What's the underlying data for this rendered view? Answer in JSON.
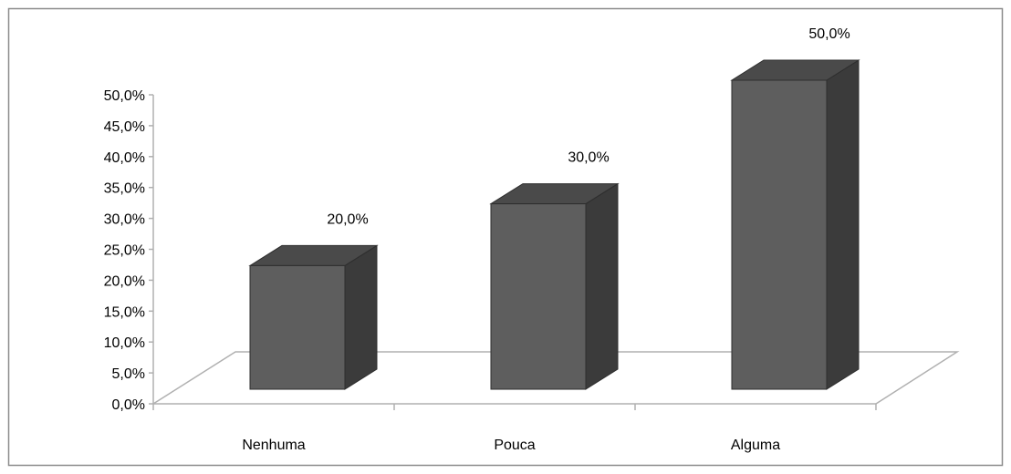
{
  "chart_data": {
    "type": "bar",
    "categories": [
      "Nenhuma",
      "Pouca",
      "Alguma"
    ],
    "values": [
      20.0,
      30.0,
      50.0
    ],
    "data_labels": [
      "20,0%",
      "30,0%",
      "50,0%"
    ],
    "y_ticks": [
      "0,0%",
      "5,0%",
      "10,0%",
      "15,0%",
      "20,0%",
      "25,0%",
      "30,0%",
      "35,0%",
      "40,0%",
      "45,0%",
      "50,0%"
    ],
    "ylim": [
      0,
      50
    ],
    "unit": "%",
    "style": "3d-column",
    "grid": false,
    "legend": "none",
    "colors": {
      "bar_front": "#5e5e5e",
      "bar_top": "#4a4a4a",
      "bar_side": "#3b3b3b",
      "bar_outline": "#2e2e2e",
      "floor_line": "#b0b0b0",
      "frame": "#8c8c8c"
    }
  }
}
